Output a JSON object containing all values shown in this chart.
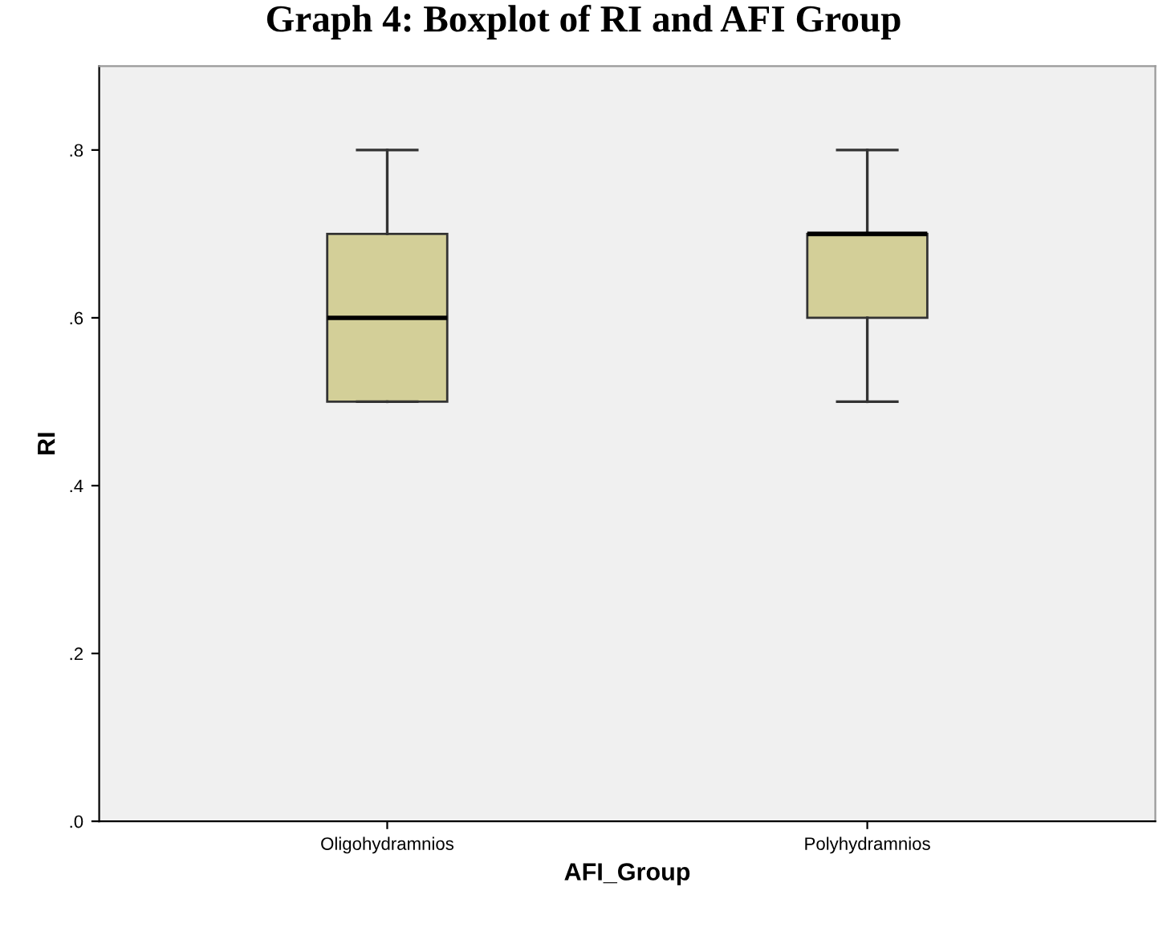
{
  "chart_data": {
    "type": "box",
    "title": "Graph 4: Boxplot of RI and AFI Group",
    "xlabel": "AFI_Group",
    "ylabel": "RI",
    "categories": [
      "Oligohydramnios",
      "Polyhydramnios"
    ],
    "boxes": [
      {
        "low": 0.5,
        "q1": 0.5,
        "median": 0.6,
        "q3": 0.7,
        "high": 0.8
      },
      {
        "low": 0.5,
        "q1": 0.6,
        "median": 0.7,
        "q3": 0.7,
        "high": 0.8
      }
    ],
    "color": "#d3cf98",
    "ylim": [
      0,
      0.9
    ],
    "yticks": [
      {
        "value": 0,
        "label": ".0"
      },
      {
        "value": 0.2,
        "label": ".2"
      },
      {
        "value": 0.4,
        "label": ".4"
      },
      {
        "value": 0.6,
        "label": ".6"
      },
      {
        "value": 0.8,
        "label": ".8"
      }
    ],
    "grid": false
  }
}
